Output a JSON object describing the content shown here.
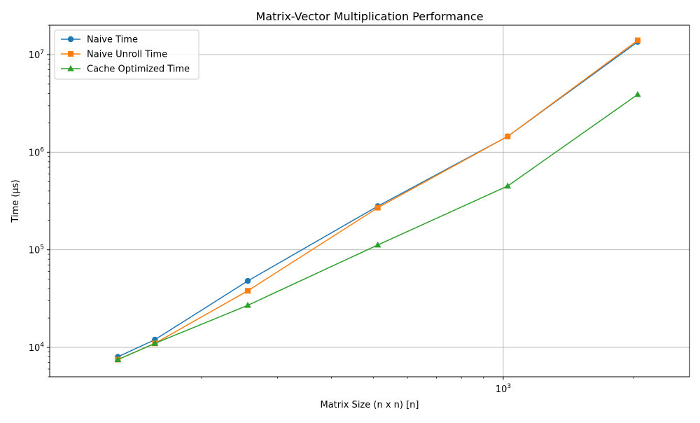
{
  "chart_data": {
    "type": "line",
    "title": "Matrix-Vector Multiplication Performance",
    "xlabel": "Matrix Size (n x n) [n]",
    "ylabel": "Time (µs)",
    "xscale": "log",
    "yscale": "log",
    "xlim": [
      89,
      2700
    ],
    "ylim": [
      5000,
      20000000
    ],
    "grid": true,
    "legend": "top-left",
    "x_major_ticks": [
      {
        "value": 1000,
        "base": "10",
        "exp": "3"
      }
    ],
    "x_minor_ticks": [
      200,
      300,
      400,
      500,
      600,
      700,
      800,
      900,
      2000
    ],
    "y_major_ticks": [
      {
        "value": 10000,
        "base": "10",
        "exp": "4"
      },
      {
        "value": 100000,
        "base": "10",
        "exp": "5"
      },
      {
        "value": 1000000,
        "base": "10",
        "exp": "6"
      },
      {
        "value": 10000000,
        "base": "10",
        "exp": "7"
      }
    ],
    "x": [
      128,
      156,
      256,
      512,
      1024,
      2048
    ],
    "series": [
      {
        "name": "Naive Time",
        "color": "#1f77b4",
        "marker": "circle",
        "values": [
          8000,
          12000,
          48000,
          280000,
          1450000,
          13500000
        ]
      },
      {
        "name": "Naive Unroll Time",
        "color": "#ff7f0e",
        "marker": "square",
        "values": [
          7500,
          11000,
          38000,
          270000,
          1450000,
          14000000
        ]
      },
      {
        "name": "Cache Optimized Time",
        "color": "#2ca02c",
        "marker": "triangle",
        "values": [
          7500,
          11000,
          27000,
          112000,
          450000,
          3900000
        ]
      }
    ]
  }
}
